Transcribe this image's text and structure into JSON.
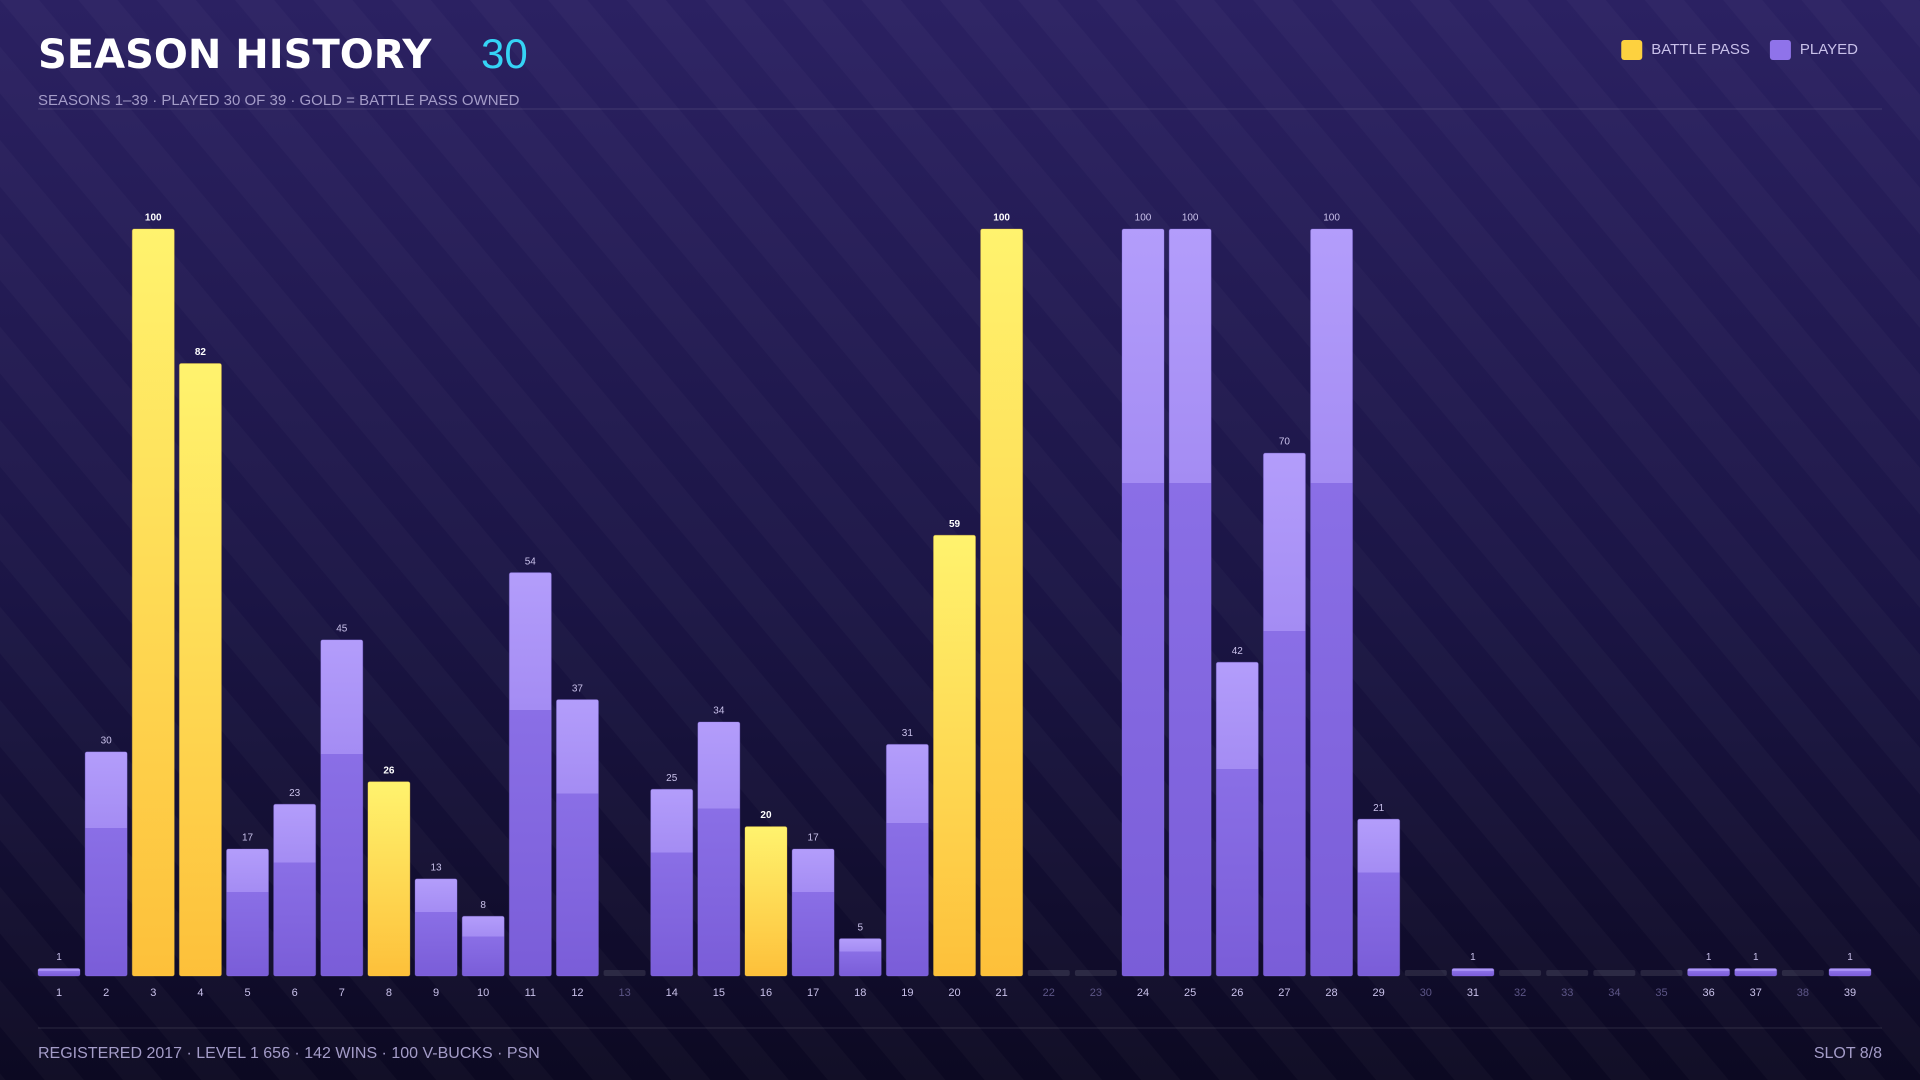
{
  "header": {
    "title": "SEASON HISTORY",
    "count": "30",
    "subtitle": "SEASONS 1–39  ·  PLAYED 30 OF 39  ·  GOLD = BATTLE PASS OWNED"
  },
  "footer": {
    "left": "REGISTERED 2017  ·  LEVEL 1 656  ·  142 WINS  ·  100 V-BUCKS  ·  PSN",
    "right": "SLOT 8/8"
  },
  "chart_data": {
    "type": "bar",
    "stacked": false,
    "categories": [
      "1",
      "2",
      "3",
      "4",
      "5",
      "6",
      "7",
      "8",
      "9",
      "10",
      "11",
      "12",
      "13",
      "14",
      "15",
      "16",
      "17",
      "18",
      "19",
      "20",
      "21",
      "22",
      "23",
      "24",
      "25",
      "26",
      "27",
      "28",
      "29",
      "30",
      "31",
      "32",
      "33",
      "34",
      "35",
      "36",
      "37",
      "38",
      "39"
    ],
    "series": [
      {
        "name": "BATTLE PASS",
        "color": "#fdd13f",
        "values": [
          null,
          null,
          100,
          82,
          null,
          null,
          null,
          26,
          null,
          null,
          null,
          null,
          null,
          null,
          null,
          20,
          null,
          null,
          null,
          59,
          100,
          null,
          null,
          null,
          null,
          null,
          null,
          null,
          null,
          null,
          null,
          null,
          null,
          null,
          null,
          null,
          null,
          null,
          null
        ]
      },
      {
        "name": "PLAYED",
        "color": "#8f73ea",
        "values": [
          1,
          30,
          null,
          null,
          17,
          23,
          45,
          null,
          13,
          8,
          54,
          37,
          null,
          25,
          34,
          null,
          17,
          5,
          31,
          null,
          null,
          null,
          null,
          100,
          100,
          42,
          70,
          100,
          21,
          null,
          1,
          null,
          null,
          null,
          null,
          1,
          1,
          null,
          1
        ]
      }
    ],
    "ylim": [
      0,
      100
    ],
    "legend": "top-right"
  }
}
